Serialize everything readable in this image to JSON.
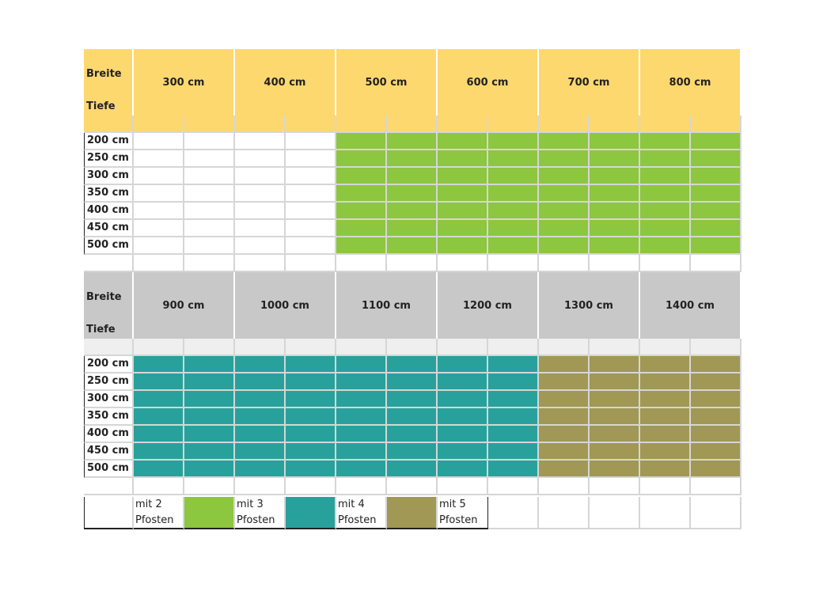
{
  "tables": [
    {
      "header_color": "#fdd86f",
      "subheader_color": "#fdd86f",
      "corner": {
        "top": "Breite",
        "bottom": "Tiefe"
      },
      "columns": [
        {
          "label": "300 cm",
          "color": "#ffffff"
        },
        {
          "label": "400 cm",
          "color": "#ffffff"
        },
        {
          "label": "500 cm",
          "color": "#8dc63f"
        },
        {
          "label": "600 cm",
          "color": "#8dc63f"
        },
        {
          "label": "700 cm",
          "color": "#8dc63f"
        },
        {
          "label": "800 cm",
          "color": "#8dc63f"
        }
      ],
      "rows": [
        "200 cm",
        "250 cm",
        "300 cm",
        "350 cm",
        "400 cm",
        "450 cm",
        "500 cm"
      ]
    },
    {
      "header_color": "#c8c8c8",
      "subheader_color": "#efefef",
      "corner": {
        "top": "Breite",
        "bottom": "Tiefe"
      },
      "columns": [
        {
          "label": "900 cm",
          "color": "#28a19d"
        },
        {
          "label": "1000 cm",
          "color": "#28a19d"
        },
        {
          "label": "1100 cm",
          "color": "#28a19d"
        },
        {
          "label": "1200 cm",
          "color": "#28a19d"
        },
        {
          "label": "1300 cm",
          "color": "#a09854"
        },
        {
          "label": "1400 cm",
          "color": "#a09854"
        }
      ],
      "rows": [
        "200 cm",
        "250 cm",
        "300 cm",
        "350 cm",
        "400 cm",
        "450 cm",
        "500 cm"
      ]
    }
  ],
  "legend": [
    {
      "label": "mit 2 Pfosten",
      "color": "#8dc63f"
    },
    {
      "label": "mit 3 Pfosten",
      "color": "#28a19d"
    },
    {
      "label": "mit 4 Pfosten",
      "color": "#a09854"
    },
    {
      "label": "mit 5 Pfosten"
    }
  ]
}
